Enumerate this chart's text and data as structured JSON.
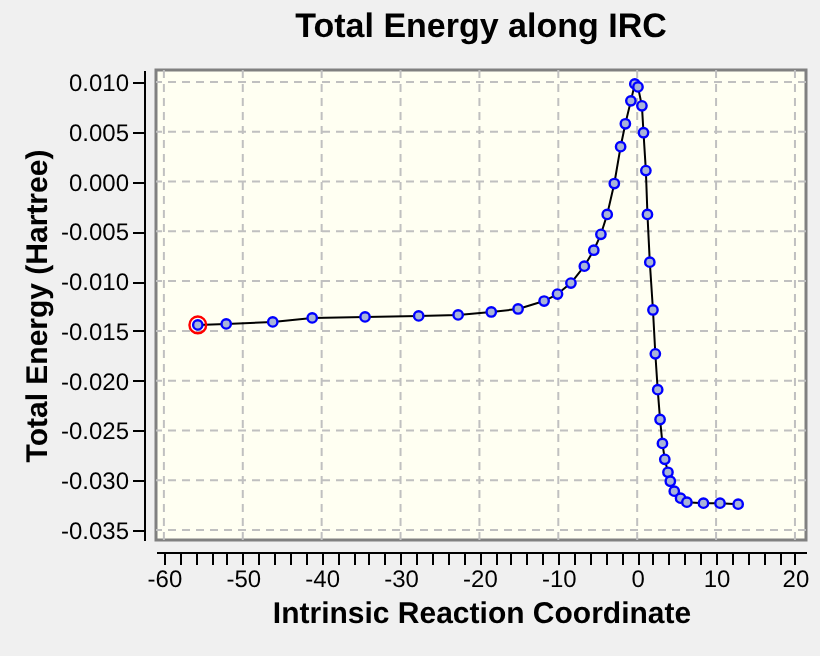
{
  "chart_data": {
    "type": "line",
    "title": "Total Energy along IRC",
    "xlabel": "Intrinsic Reaction Coordinate",
    "ylabel": "Total Energy (Hartree)",
    "xlim": [
      -61,
      21.4
    ],
    "ylim": [
      -0.036,
      0.0112
    ],
    "xticks": [
      -60,
      {
        "value": -58,
        "label": null
      },
      {
        "value": -56,
        "label": null
      },
      {
        "value": -54,
        "label": null
      },
      {
        "value": -52,
        "label": null
      },
      -50,
      {
        "value": -48,
        "label": null
      },
      {
        "value": -46,
        "label": null
      },
      {
        "value": -44,
        "label": null
      },
      {
        "value": -42,
        "label": null
      },
      -40,
      {
        "value": -38,
        "label": null
      },
      {
        "value": -36,
        "label": null
      },
      {
        "value": -34,
        "label": null
      },
      {
        "value": -32,
        "label": null
      },
      -30,
      {
        "value": -28,
        "label": null
      },
      {
        "value": -26,
        "label": null
      },
      {
        "value": -24,
        "label": null
      },
      {
        "value": -22,
        "label": null
      },
      -20,
      {
        "value": -18,
        "label": null
      },
      {
        "value": -16,
        "label": null
      },
      {
        "value": -14,
        "label": null
      },
      {
        "value": -12,
        "label": null
      },
      -10,
      {
        "value": -8,
        "label": null
      },
      {
        "value": -6,
        "label": null
      },
      {
        "value": -4,
        "label": null
      },
      {
        "value": -2,
        "label": null
      },
      0,
      {
        "value": 2,
        "label": null
      },
      {
        "value": 4,
        "label": null
      },
      {
        "value": 6,
        "label": null
      },
      {
        "value": 8,
        "label": null
      },
      10,
      {
        "value": 12,
        "label": null
      },
      {
        "value": 14,
        "label": null
      },
      {
        "value": 16,
        "label": null
      },
      {
        "value": 18,
        "label": null
      },
      20
    ],
    "yticks": [
      {
        "value": -0.035,
        "label": "-0.035"
      },
      {
        "value": -0.03,
        "label": "-0.030"
      },
      {
        "value": -0.025,
        "label": "-0.025"
      },
      {
        "value": -0.02,
        "label": "-0.020"
      },
      {
        "value": -0.015,
        "label": "-0.015"
      },
      {
        "value": -0.01,
        "label": "-0.010"
      },
      {
        "value": -0.005,
        "label": "-0.005"
      },
      {
        "value": 0,
        "label": "0.000"
      },
      {
        "value": 0.005,
        "label": "0.005"
      },
      {
        "value": 0.01,
        "label": "0.010"
      }
    ],
    "grid": true,
    "marker": "circle",
    "line_style": "solid",
    "series": [
      {
        "color": "#0000ff",
        "x": [
          -55.7,
          -52.1,
          -46.2,
          -41.2,
          -34.5,
          -27.7,
          -22.7,
          -18.5,
          -15.1,
          -11.8,
          -10.1,
          -8.4,
          -6.7,
          -5.5,
          -4.6,
          -3.8,
          -2.9,
          -2.1,
          -1.5,
          -0.8,
          -0.3,
          0.1,
          0.6,
          0.8,
          1.1,
          1.3,
          1.6,
          2.0,
          2.3,
          2.6,
          2.9,
          3.2,
          3.5,
          3.9,
          4.2,
          4.7,
          5.5,
          6.3,
          8.4,
          10.5,
          12.8
        ],
        "values": [
          -0.0144,
          -0.0143,
          -0.0141,
          -0.0137,
          -0.0136,
          -0.0135,
          -0.0134,
          -0.0131,
          -0.0128,
          -0.012,
          -0.0113,
          -0.0102,
          -0.0085,
          -0.0069,
          -0.0053,
          -0.0033,
          -0.0002,
          0.0035,
          0.0058,
          0.0081,
          0.0098,
          0.0095,
          0.0076,
          0.0049,
          0.0011,
          -0.0033,
          -0.0081,
          -0.0129,
          -0.0173,
          -0.0209,
          -0.0239,
          -0.0263,
          -0.0279,
          -0.0292,
          -0.0301,
          -0.0311,
          -0.0318,
          -0.0322,
          -0.0323,
          -0.0323,
          -0.0324
        ]
      },
      {
        "type": "scatter",
        "color": "#ff0000",
        "x": [
          -55.7
        ],
        "values": [
          -0.0144
        ]
      }
    ]
  }
}
